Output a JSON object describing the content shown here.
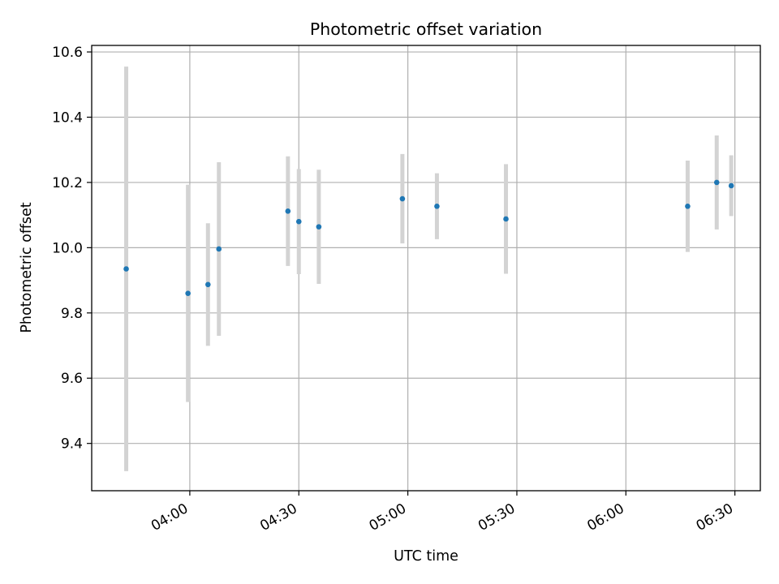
{
  "chart_data": {
    "type": "scatter",
    "title": "Photometric offset variation",
    "xlabel": "UTC time",
    "ylabel": "Photometric offset",
    "x_unit": "time HH:MM",
    "xlim": [
      "03:33:00",
      "06:37:00"
    ],
    "ylim": [
      9.255,
      10.62
    ],
    "x_ticks": [
      "04:00",
      "04:30",
      "05:00",
      "05:30",
      "06:00",
      "06:30"
    ],
    "y_ticks": [
      "9.4",
      "9.6",
      "9.8",
      "10.0",
      "10.2",
      "10.4",
      "10.6"
    ],
    "grid": true,
    "points": [
      {
        "x": "03:42:30",
        "y": 9.935,
        "err": 0.62
      },
      {
        "x": "03:59:30",
        "y": 9.86,
        "err": 0.333
      },
      {
        "x": "04:05:00",
        "y": 9.887,
        "err": 0.188
      },
      {
        "x": "04:08:00",
        "y": 9.996,
        "err": 0.266
      },
      {
        "x": "04:27:00",
        "y": 10.112,
        "err": 0.168
      },
      {
        "x": "04:30:00",
        "y": 10.08,
        "err": 0.161
      },
      {
        "x": "04:35:30",
        "y": 10.064,
        "err": 0.175
      },
      {
        "x": "04:58:30",
        "y": 10.15,
        "err": 0.137
      },
      {
        "x": "05:08:00",
        "y": 10.127,
        "err": 0.101
      },
      {
        "x": "05:27:00",
        "y": 10.088,
        "err": 0.168
      },
      {
        "x": "06:17:00",
        "y": 10.127,
        "err": 0.14
      },
      {
        "x": "06:25:00",
        "y": 10.2,
        "err": 0.144
      },
      {
        "x": "06:29:00",
        "y": 10.19,
        "err": 0.093
      }
    ],
    "colors": {
      "marker": "#1f77b4",
      "errorbar": "#d3d3d3",
      "grid": "#b0b0b0"
    }
  }
}
